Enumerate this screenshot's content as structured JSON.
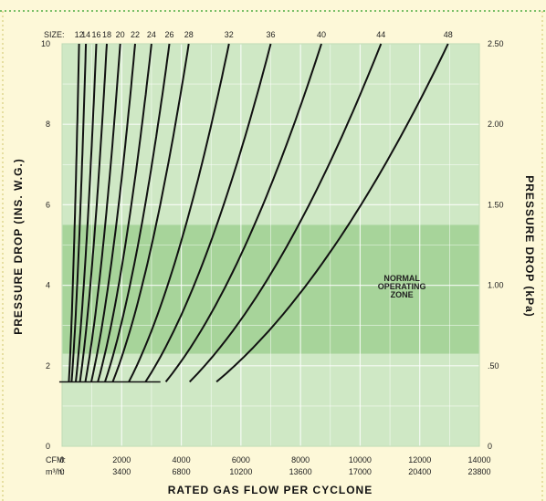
{
  "chart_data": {
    "type": "line",
    "xlabel": "RATED GAS FLOW PER CYCLONE",
    "ylabel_left": "PRESSURE DROP (INS. W.G.)",
    "ylabel_right": "PRESSURE DROP (kPa)",
    "xlim": [
      0,
      14000
    ],
    "ylim": [
      0,
      10
    ],
    "x_tick_prefix_cfm": "CFM:",
    "x_tick_prefix_m3h": "m³/h:",
    "x_ticks_cfm": [
      "0",
      "2000",
      "4000",
      "6000",
      "8000",
      "10000",
      "12000",
      "14000"
    ],
    "x_ticks_m3h": [
      "0",
      "3400",
      "6800",
      "10200",
      "13600",
      "17000",
      "20400",
      "23800"
    ],
    "y_ticks_left": [
      "0",
      "2",
      "4",
      "6",
      "8",
      "10"
    ],
    "y_ticks_right": [
      "0",
      ".50",
      "1.00",
      "1.50",
      "2.00",
      "2.50"
    ],
    "size_label": "SIZE:",
    "sizes": [
      "12",
      "14",
      "16",
      "18",
      "20",
      "22",
      "24",
      "26",
      "28",
      "32",
      "36",
      "40",
      "44",
      "48"
    ],
    "zone_label": [
      "NORMAL",
      "OPERATING",
      "ZONE"
    ],
    "zone_range": [
      2.3,
      5.5
    ],
    "colors": {
      "plot_bg": "#cfe8c5",
      "zone": "#a7d49a",
      "grid": "#ffffff",
      "curve": "#111111",
      "page_bg": "#fdf8d8",
      "border_dots": "#7cc06a"
    },
    "grid": true,
    "series": [
      {
        "x_top": 570,
        "x_bottom": 90
      },
      {
        "x_top": 800,
        "x_bottom": 150
      },
      {
        "x_top": 1150,
        "x_bottom": 260
      },
      {
        "x_top": 1500,
        "x_bottom": 350
      },
      {
        "x_top": 1950,
        "x_bottom": 480
      },
      {
        "x_top": 2450,
        "x_bottom": 600
      },
      {
        "x_top": 3000,
        "x_bottom": 750
      },
      {
        "x_top": 3600,
        "x_bottom": 900
      },
      {
        "x_top": 4250,
        "x_bottom": 1070
      },
      {
        "x_top": 5600,
        "x_bottom": 1420
      },
      {
        "x_top": 7000,
        "x_bottom": 1780
      },
      {
        "x_top": 8700,
        "x_bottom": 2200
      },
      {
        "x_top": 10700,
        "x_bottom": 2750
      },
      {
        "x_top": 12950,
        "x_bottom": 3300
      }
    ],
    "curve_y_range": [
      1.6,
      10
    ]
  }
}
